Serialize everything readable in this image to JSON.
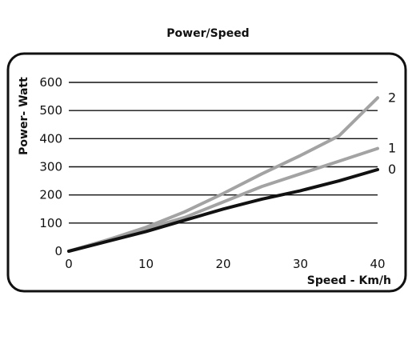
{
  "chart_data": {
    "type": "line",
    "title": "Power/Speed",
    "xlabel": "Speed - Km/h",
    "ylabel": "Power- Watt",
    "xlim": [
      0,
      40
    ],
    "ylim": [
      0,
      600
    ],
    "x_ticks": [
      "0",
      "10",
      "20",
      "30",
      "40"
    ],
    "y_ticks": [
      "0",
      "100",
      "200",
      "300",
      "400",
      "500",
      "600"
    ],
    "grid": "horizontal",
    "x": [
      0,
      5,
      10,
      15,
      20,
      25,
      30,
      35,
      40
    ],
    "series": [
      {
        "name": "0",
        "color": "#111111",
        "values": [
          0,
          35,
          70,
          110,
          150,
          185,
          215,
          250,
          290
        ]
      },
      {
        "name": "1",
        "color": "#a3a3a3",
        "values": [
          0,
          40,
          80,
          120,
          175,
          230,
          275,
          320,
          365
        ]
      },
      {
        "name": "2",
        "color": "#a3a3a3",
        "values": [
          0,
          40,
          85,
          140,
          205,
          275,
          340,
          410,
          545
        ]
      }
    ]
  }
}
